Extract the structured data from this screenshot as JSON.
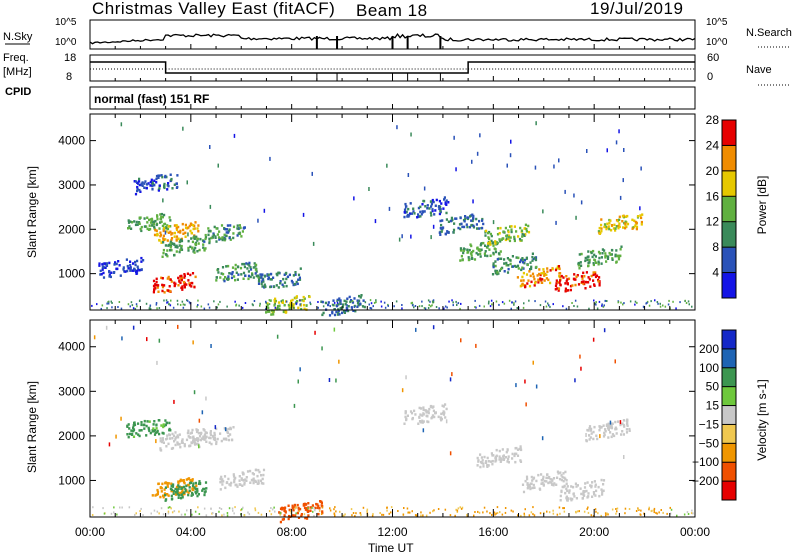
{
  "header": {
    "title": "Christmas Valley East (fitACF)",
    "beam": "Beam 18",
    "date": "19/Jul/2019"
  },
  "top_panels": {
    "nsky_label": "N.Sky",
    "nsky_ticks": [
      "10^5",
      "10^0"
    ],
    "nsearch_label": "N.Search",
    "nsearch_ticks": [
      "10^5",
      "10^0"
    ],
    "freq_label": "Freq.",
    "freq_unit": "[MHz]",
    "freq_ticks": [
      "18",
      "8"
    ],
    "nave_label": "Nave",
    "nave_ticks": [
      "60",
      "0"
    ],
    "cpid_label": "CPID",
    "cpid_value": "normal (fast) 151 RF"
  },
  "chart_data": [
    {
      "type": "heatmap",
      "name": "power",
      "ylabel": "Slant Range [km]",
      "xlabel": "",
      "y_ticks": [
        1000,
        2000,
        3000,
        4000
      ],
      "ylim": [
        180,
        4600
      ],
      "colorbar_label": "Power [dB]",
      "colorbar_ticks": [
        4,
        8,
        12,
        16,
        20,
        24,
        28
      ],
      "colorbar_colors": [
        "#1414e6",
        "#2a52b8",
        "#3a8a5a",
        "#60b040",
        "#e6c800",
        "#f08c00",
        "#e60000"
      ],
      "blobs": [
        {
          "t": 1.2,
          "r": 1150,
          "v": 6
        },
        {
          "t": 2.3,
          "r": 2150,
          "v": 14
        },
        {
          "t": 2.6,
          "r": 3050,
          "v": 8
        },
        {
          "t": 3.3,
          "r": 800,
          "v": 28
        },
        {
          "t": 3.4,
          "r": 1950,
          "v": 22
        },
        {
          "t": 3.7,
          "r": 1650,
          "v": 14
        },
        {
          "t": 5.3,
          "r": 1950,
          "v": 12
        },
        {
          "t": 5.8,
          "r": 1050,
          "v": 12
        },
        {
          "t": 7.5,
          "r": 900,
          "v": 10
        },
        {
          "t": 7.8,
          "r": 330,
          "v": 18
        },
        {
          "t": 10.0,
          "r": 300,
          "v": 10
        },
        {
          "t": 13.3,
          "r": 2500,
          "v": 8
        },
        {
          "t": 14.7,
          "r": 2150,
          "v": 10
        },
        {
          "t": 15.5,
          "r": 1550,
          "v": 14
        },
        {
          "t": 16.5,
          "r": 1900,
          "v": 16
        },
        {
          "t": 16.8,
          "r": 1250,
          "v": 12
        },
        {
          "t": 17.8,
          "r": 950,
          "v": 24
        },
        {
          "t": 19.3,
          "r": 850,
          "v": 28
        },
        {
          "t": 20.2,
          "r": 1400,
          "v": 14
        },
        {
          "t": 21.0,
          "r": 2150,
          "v": 20
        }
      ]
    },
    {
      "type": "heatmap",
      "name": "velocity",
      "ylabel": "Slant Range [km]",
      "xlabel": "Time UT",
      "x_ticks": [
        "00:00",
        "04:00",
        "08:00",
        "12:00",
        "16:00",
        "20:00",
        "00:00"
      ],
      "y_ticks": [
        1000,
        2000,
        3000,
        4000
      ],
      "ylim": [
        180,
        4600
      ],
      "colorbar_label": "Velocity [m s-1]",
      "colorbar_ticks": [
        200,
        100,
        50,
        15,
        -15,
        -50,
        -100,
        -200
      ],
      "colorbar_colors": [
        "#1428c8",
        "#1e64b4",
        "#3c9650",
        "#6ec83c",
        "#c8c8c8",
        "#f0c850",
        "#f09600",
        "#f05000",
        "#e60000"
      ],
      "blobs": [
        {
          "t": 2.3,
          "r": 2200,
          "v": 40
        },
        {
          "t": 3.3,
          "r": 850,
          "v": -60
        },
        {
          "t": 3.7,
          "r": 800,
          "v": 60
        },
        {
          "t": 3.6,
          "r": 1950,
          "v": 0
        },
        {
          "t": 4.8,
          "r": 2000,
          "v": 0
        },
        {
          "t": 6.0,
          "r": 1050,
          "v": 0
        },
        {
          "t": 8.3,
          "r": 330,
          "v": -120
        },
        {
          "t": 13.3,
          "r": 2500,
          "v": 0
        },
        {
          "t": 16.2,
          "r": 1550,
          "v": 0
        },
        {
          "t": 18.0,
          "r": 1000,
          "v": 0
        },
        {
          "t": 19.5,
          "r": 800,
          "v": 0
        },
        {
          "t": 20.5,
          "r": 2150,
          "v": 0
        }
      ]
    }
  ]
}
